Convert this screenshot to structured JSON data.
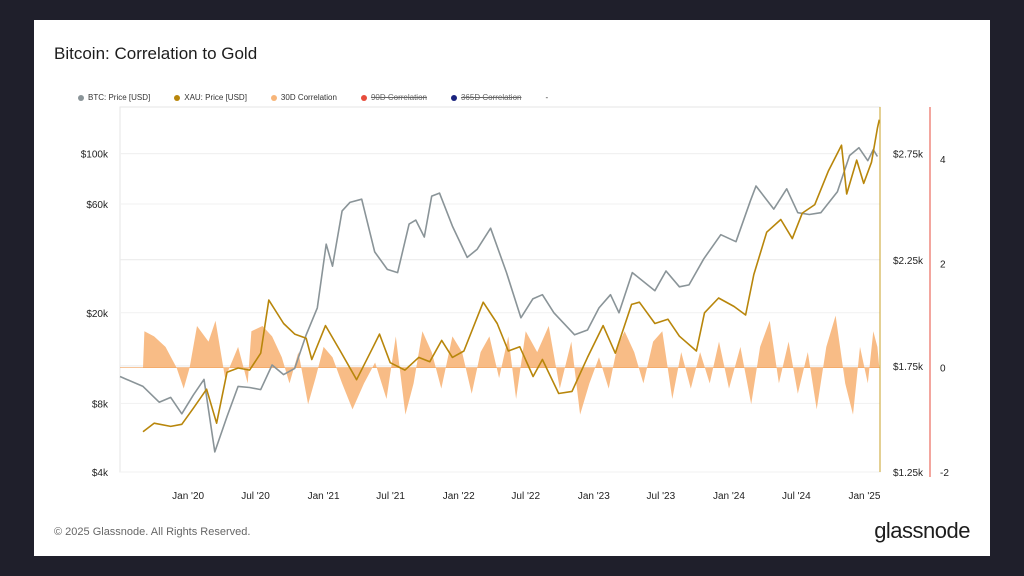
{
  "card": {
    "title": "Bitcoin: Correlation to Gold",
    "footer": "© 2025 Glassnode. All Rights Reserved.",
    "brand": "glassnode"
  },
  "legend": [
    {
      "label": "BTC: Price [USD]",
      "color": "#8a9498",
      "struck": false
    },
    {
      "label": "XAU: Price [USD]",
      "color": "#b8860b",
      "struck": false
    },
    {
      "label": "30D Correlation",
      "color": "#f7b579",
      "struck": false
    },
    {
      "label": "90D Correlation",
      "color": "#e74c3c",
      "struck": true
    },
    {
      "label": "365D Correlation",
      "color": "#1a237e",
      "struck": true
    }
  ],
  "legend_trailing": "-",
  "chart_data": {
    "type": "line",
    "title": "Bitcoin: Correlation to Gold",
    "x_ticks": [
      "Jan '20",
      "Jul '20",
      "Jan '21",
      "Jul '21",
      "Jan '22",
      "Jul '22",
      "Jan '23",
      "Jul '23",
      "Jan '24",
      "Jul '24",
      "Jan '25"
    ],
    "y_left": {
      "scale": "log",
      "ticks": [
        "$4k",
        "$8k",
        "$20k",
        "$60k",
        "$100k"
      ],
      "tick_values": [
        4000,
        8000,
        20000,
        60000,
        100000
      ],
      "range": [
        4000,
        160000
      ]
    },
    "y_right_price": {
      "ticks": [
        "$1.25k",
        "$1.75k",
        "$2.25k",
        "$2.75k"
      ],
      "tick_values": [
        1250,
        1750,
        2250,
        2750
      ],
      "range": [
        1250,
        2970
      ]
    },
    "y_right_corr": {
      "ticks": [
        "-2",
        "0",
        "2",
        "4"
      ],
      "tick_values": [
        -2,
        0,
        2,
        4
      ],
      "range": [
        -2,
        5
      ]
    },
    "grid": true,
    "legend_position": "top",
    "series": [
      {
        "name": "BTC: Price [USD]",
        "color": "#8a9498",
        "axis": "left",
        "points": [
          [
            "2019-07-01",
            10500
          ],
          [
            "2019-09-01",
            9500
          ],
          [
            "2019-10-15",
            8100
          ],
          [
            "2019-11-15",
            8500
          ],
          [
            "2019-12-15",
            7200
          ],
          [
            "2020-01-15",
            8700
          ],
          [
            "2020-02-13",
            10200
          ],
          [
            "2020-03-13",
            4900
          ],
          [
            "2020-04-15",
            7000
          ],
          [
            "2020-05-15",
            9500
          ],
          [
            "2020-06-15",
            9400
          ],
          [
            "2020-07-15",
            9200
          ],
          [
            "2020-08-15",
            11800
          ],
          [
            "2020-09-15",
            10700
          ],
          [
            "2020-10-15",
            11400
          ],
          [
            "2020-11-15",
            16000
          ],
          [
            "2020-12-15",
            21000
          ],
          [
            "2021-01-08",
            40000
          ],
          [
            "2021-01-25",
            32000
          ],
          [
            "2021-02-20",
            56000
          ],
          [
            "2021-03-13",
            61000
          ],
          [
            "2021-04-14",
            63000
          ],
          [
            "2021-05-19",
            37000
          ],
          [
            "2021-06-22",
            31000
          ],
          [
            "2021-07-20",
            30000
          ],
          [
            "2021-08-20",
            49000
          ],
          [
            "2021-09-07",
            51000
          ],
          [
            "2021-09-30",
            43000
          ],
          [
            "2021-10-20",
            65000
          ],
          [
            "2021-11-10",
            67000
          ],
          [
            "2021-12-15",
            48000
          ],
          [
            "2022-01-24",
            35000
          ],
          [
            "2022-02-20",
            38000
          ],
          [
            "2022-03-28",
            47000
          ],
          [
            "2022-05-10",
            30000
          ],
          [
            "2022-06-18",
            19000
          ],
          [
            "2022-07-20",
            23000
          ],
          [
            "2022-08-15",
            24000
          ],
          [
            "2022-09-15",
            20000
          ],
          [
            "2022-11-10",
            16000
          ],
          [
            "2022-12-15",
            16800
          ],
          [
            "2023-01-15",
            21000
          ],
          [
            "2023-02-15",
            24000
          ],
          [
            "2023-03-10",
            20000
          ],
          [
            "2023-04-15",
            30000
          ],
          [
            "2023-06-15",
            25000
          ],
          [
            "2023-07-15",
            30500
          ],
          [
            "2023-08-20",
            26000
          ],
          [
            "2023-09-15",
            26500
          ],
          [
            "2023-10-25",
            34500
          ],
          [
            "2023-12-10",
            44000
          ],
          [
            "2024-01-20",
            41000
          ],
          [
            "2024-02-28",
            62000
          ],
          [
            "2024-03-14",
            72000
          ],
          [
            "2024-05-01",
            57000
          ],
          [
            "2024-06-05",
            70000
          ],
          [
            "2024-07-05",
            55000
          ],
          [
            "2024-08-05",
            54000
          ],
          [
            "2024-09-05",
            55000
          ],
          [
            "2024-10-20",
            68000
          ],
          [
            "2024-11-22",
            98000
          ],
          [
            "2024-12-17",
            106000
          ],
          [
            "2025-01-10",
            93000
          ],
          [
            "2025-01-25",
            104000
          ],
          [
            "2025-02-05",
            97000
          ]
        ]
      },
      {
        "name": "XAU: Price [USD]",
        "color": "#b8860b",
        "axis": "right_price",
        "points": [
          [
            "2019-09-01",
            1440
          ],
          [
            "2019-10-01",
            1480
          ],
          [
            "2019-11-15",
            1465
          ],
          [
            "2019-12-15",
            1475
          ],
          [
            "2020-01-15",
            1550
          ],
          [
            "2020-02-20",
            1640
          ],
          [
            "2020-03-18",
            1480
          ],
          [
            "2020-04-15",
            1720
          ],
          [
            "2020-05-15",
            1740
          ],
          [
            "2020-06-15",
            1730
          ],
          [
            "2020-07-15",
            1810
          ],
          [
            "2020-08-06",
            2060
          ],
          [
            "2020-09-15",
            1950
          ],
          [
            "2020-10-15",
            1900
          ],
          [
            "2020-11-15",
            1880
          ],
          [
            "2020-11-30",
            1780
          ],
          [
            "2021-01-06",
            1940
          ],
          [
            "2021-02-15",
            1820
          ],
          [
            "2021-03-31",
            1685
          ],
          [
            "2021-05-15",
            1840
          ],
          [
            "2021-06-01",
            1900
          ],
          [
            "2021-06-30",
            1765
          ],
          [
            "2021-08-09",
            1730
          ],
          [
            "2021-09-15",
            1790
          ],
          [
            "2021-10-15",
            1770
          ],
          [
            "2021-11-16",
            1870
          ],
          [
            "2021-12-15",
            1790
          ],
          [
            "2022-01-15",
            1820
          ],
          [
            "2022-03-08",
            2050
          ],
          [
            "2022-04-15",
            1950
          ],
          [
            "2022-05-15",
            1820
          ],
          [
            "2022-06-15",
            1840
          ],
          [
            "2022-07-21",
            1700
          ],
          [
            "2022-08-15",
            1780
          ],
          [
            "2022-09-28",
            1620
          ],
          [
            "2022-11-03",
            1630
          ],
          [
            "2022-12-15",
            1790
          ],
          [
            "2023-01-26",
            1940
          ],
          [
            "2023-02-28",
            1810
          ],
          [
            "2023-04-13",
            2040
          ],
          [
            "2023-05-04",
            2050
          ],
          [
            "2023-06-15",
            1950
          ],
          [
            "2023-07-20",
            1970
          ],
          [
            "2023-08-20",
            1890
          ],
          [
            "2023-10-05",
            1820
          ],
          [
            "2023-10-27",
            2000
          ],
          [
            "2023-12-04",
            2070
          ],
          [
            "2024-01-15",
            2030
          ],
          [
            "2024-02-15",
            1990
          ],
          [
            "2024-03-08",
            2180
          ],
          [
            "2024-04-12",
            2380
          ],
          [
            "2024-05-20",
            2440
          ],
          [
            "2024-06-20",
            2350
          ],
          [
            "2024-07-17",
            2470
          ],
          [
            "2024-08-20",
            2510
          ],
          [
            "2024-09-26",
            2670
          ],
          [
            "2024-10-31",
            2790
          ],
          [
            "2024-11-14",
            2560
          ],
          [
            "2024-12-11",
            2720
          ],
          [
            "2024-12-30",
            2610
          ],
          [
            "2025-01-20",
            2710
          ],
          [
            "2025-02-05",
            2870
          ],
          [
            "2025-02-10",
            2910
          ]
        ]
      },
      {
        "name": "30D Correlation",
        "color": "#f7b579",
        "axis": "right_corr",
        "points": [
          [
            "2019-09-01",
            0.0
          ],
          [
            "2019-09-05",
            0.7
          ],
          [
            "2019-10-01",
            0.6
          ],
          [
            "2019-11-01",
            0.4
          ],
          [
            "2019-12-01",
            0.0
          ],
          [
            "2019-12-20",
            -0.4
          ],
          [
            "2020-01-05",
            0.0
          ],
          [
            "2020-01-25",
            0.8
          ],
          [
            "2020-02-25",
            0.5
          ],
          [
            "2020-03-15",
            0.9
          ],
          [
            "2020-04-10",
            -0.2
          ],
          [
            "2020-05-15",
            0.4
          ],
          [
            "2020-06-10",
            -0.3
          ],
          [
            "2020-06-20",
            0.7
          ],
          [
            "2020-07-20",
            0.8
          ],
          [
            "2020-08-15",
            0.6
          ],
          [
            "2020-09-10",
            0.2
          ],
          [
            "2020-10-01",
            -0.3
          ],
          [
            "2020-10-25",
            0.3
          ],
          [
            "2020-11-20",
            -0.7
          ],
          [
            "2020-12-10",
            -0.2
          ],
          [
            "2021-01-01",
            0.4
          ],
          [
            "2021-01-25",
            0.2
          ],
          [
            "2021-02-20",
            -0.3
          ],
          [
            "2021-03-20",
            -0.8
          ],
          [
            "2021-04-20",
            -0.3
          ],
          [
            "2021-05-20",
            0.1
          ],
          [
            "2021-06-20",
            -0.6
          ],
          [
            "2021-07-15",
            0.6
          ],
          [
            "2021-08-10",
            -0.9
          ],
          [
            "2021-09-01",
            -0.3
          ],
          [
            "2021-09-25",
            0.7
          ],
          [
            "2021-10-20",
            0.3
          ],
          [
            "2021-11-15",
            -0.4
          ],
          [
            "2021-12-15",
            0.6
          ],
          [
            "2022-01-10",
            0.3
          ],
          [
            "2022-02-05",
            -0.5
          ],
          [
            "2022-03-01",
            0.3
          ],
          [
            "2022-03-25",
            0.6
          ],
          [
            "2022-04-20",
            -0.2
          ],
          [
            "2022-05-15",
            0.6
          ],
          [
            "2022-06-05",
            -0.6
          ],
          [
            "2022-07-01",
            0.7
          ],
          [
            "2022-08-01",
            0.3
          ],
          [
            "2022-09-01",
            0.8
          ],
          [
            "2022-10-01",
            -0.4
          ],
          [
            "2022-11-01",
            0.5
          ],
          [
            "2022-11-25",
            -0.9
          ],
          [
            "2022-12-20",
            -0.3
          ],
          [
            "2023-01-15",
            0.2
          ],
          [
            "2023-02-10",
            -0.4
          ],
          [
            "2023-03-05",
            0.4
          ],
          [
            "2023-03-25",
            0.7
          ],
          [
            "2023-04-20",
            0.3
          ],
          [
            "2023-05-15",
            -0.3
          ],
          [
            "2023-06-10",
            0.5
          ],
          [
            "2023-07-05",
            0.7
          ],
          [
            "2023-08-01",
            -0.6
          ],
          [
            "2023-08-25",
            0.3
          ],
          [
            "2023-09-20",
            -0.4
          ],
          [
            "2023-10-15",
            0.3
          ],
          [
            "2023-11-10",
            -0.3
          ],
          [
            "2023-12-05",
            0.5
          ],
          [
            "2024-01-01",
            -0.4
          ],
          [
            "2024-02-01",
            0.4
          ],
          [
            "2024-03-01",
            -0.7
          ],
          [
            "2024-03-25",
            0.4
          ],
          [
            "2024-04-20",
            0.9
          ],
          [
            "2024-05-15",
            -0.3
          ],
          [
            "2024-06-10",
            0.5
          ],
          [
            "2024-07-05",
            -0.5
          ],
          [
            "2024-08-01",
            0.3
          ],
          [
            "2024-08-25",
            -0.8
          ],
          [
            "2024-09-20",
            0.4
          ],
          [
            "2024-10-15",
            1.0
          ],
          [
            "2024-11-10",
            -0.3
          ],
          [
            "2024-12-01",
            -0.9
          ],
          [
            "2024-12-20",
            0.4
          ],
          [
            "2025-01-10",
            -0.3
          ],
          [
            "2025-01-25",
            0.7
          ],
          [
            "2025-02-05",
            0.4
          ],
          [
            "2025-02-10",
            0.0
          ]
        ]
      }
    ]
  }
}
